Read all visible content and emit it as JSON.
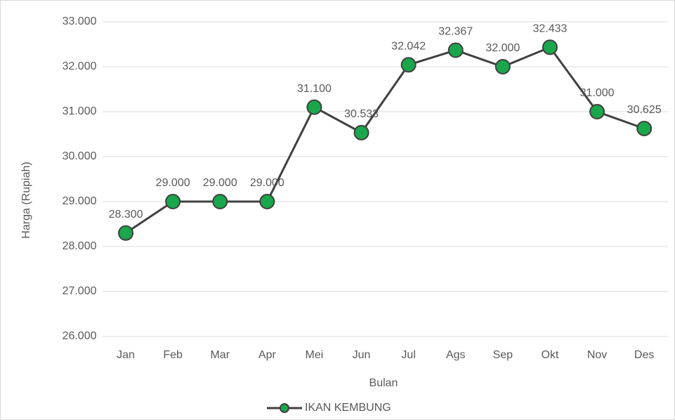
{
  "chart_data": {
    "type": "line",
    "x_label": "Bulan",
    "y_label": "Harga (Rupiah)",
    "categories": [
      "Jan",
      "Feb",
      "Mar",
      "Apr",
      "Mei",
      "Jun",
      "Jul",
      "Ags",
      "Sep",
      "Okt",
      "Nov",
      "Des"
    ],
    "series": [
      {
        "name": "IKAN KEMBUNG",
        "color": "#404040",
        "marker_color": "#1aa64a",
        "values": [
          28300,
          29000,
          29000,
          29000,
          31100,
          30533,
          32042,
          32367,
          32000,
          32433,
          31000,
          30625
        ],
        "value_labels": [
          "28.300",
          "29.000",
          "29.000",
          "29.000",
          "31.100",
          "30.533",
          "32.042",
          "32.367",
          "32.000",
          "32.433",
          "31.000",
          "30.625"
        ]
      }
    ],
    "ylim": [
      26000,
      33000
    ],
    "yticks": [
      {
        "value": 26000,
        "label": "26.000"
      },
      {
        "value": 27000,
        "label": "27.000"
      },
      {
        "value": 28000,
        "label": "28.000"
      },
      {
        "value": 29000,
        "label": "29.000"
      },
      {
        "value": 30000,
        "label": "30.000"
      },
      {
        "value": 31000,
        "label": "31.000"
      },
      {
        "value": 32000,
        "label": "32.000"
      },
      {
        "value": 33000,
        "label": "33.000"
      }
    ],
    "grid": true,
    "legend": "bottom"
  }
}
